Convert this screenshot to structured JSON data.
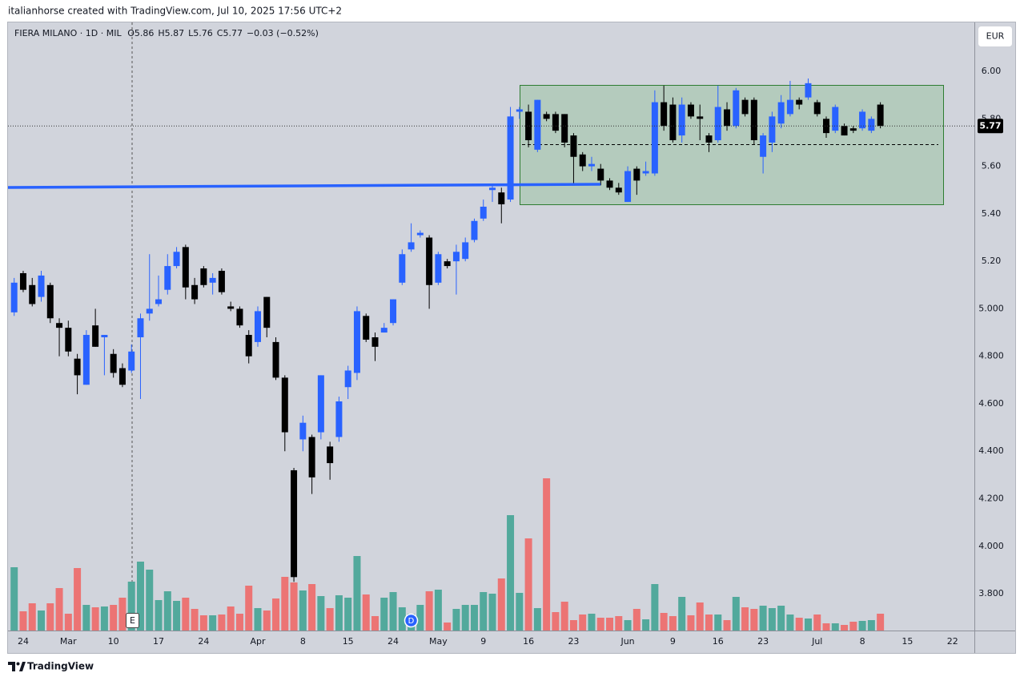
{
  "header": "italianhorse created with TradingView.com, Jul 10, 2025 17:56 UTC+2",
  "brand": "TradingView",
  "chart_data": {
    "type": "candlestick",
    "symbol": "FIERA MILANO · 1D · MIL",
    "legend_keys": [
      "O",
      "H",
      "L",
      "C"
    ],
    "change": "−0.03 (−0.52%)",
    "currency": "EUR",
    "markers": [
      "E",
      "D"
    ],
    "categories": [
      null,
      "24",
      null,
      null,
      null,
      null,
      "Mar",
      null,
      null,
      null,
      null,
      "10",
      null,
      null,
      null,
      null,
      "17",
      null,
      null,
      null,
      null,
      "24",
      null,
      null,
      null,
      null,
      null,
      "Apr",
      null,
      null,
      null,
      null,
      "8",
      null,
      null,
      null,
      null,
      "15",
      null,
      null,
      null,
      null,
      "24",
      null,
      null,
      null,
      null,
      "May",
      null,
      null,
      null,
      null,
      "9",
      null,
      null,
      null,
      null,
      "16",
      null,
      null,
      null,
      null,
      "23",
      null,
      null,
      null,
      null,
      null,
      "Jun",
      null,
      null,
      null,
      null,
      "9",
      null,
      null,
      null,
      null,
      "16",
      null,
      null,
      null,
      null,
      "23",
      null,
      null,
      null,
      null,
      null,
      "Jul",
      null,
      null,
      null,
      null,
      "8",
      null,
      null,
      null,
      null,
      "15",
      null,
      null,
      null,
      null,
      "22"
    ],
    "open": [
      4.985,
      5.15,
      5.1,
      5.05,
      5.1,
      4.94,
      4.92,
      4.79,
      4.68,
      4.93,
      4.88,
      4.81,
      4.75,
      4.74,
      4.88,
      4.98,
      5.02,
      5.08,
      5.18,
      5.26,
      5.1,
      5.17,
      5.11,
      5.16,
      5.01,
      5.0,
      4.89,
      4.86,
      5.05,
      4.86,
      4.71,
      4.32,
      4.45,
      4.46,
      4.48,
      4.42,
      4.46,
      4.67,
      4.73,
      4.97,
      4.88,
      4.9,
      4.94,
      5.11,
      5.25,
      5.31,
      5.3,
      5.11,
      5.2,
      5.2,
      5.21,
      5.29,
      5.38,
      5.5,
      5.49,
      5.46,
      5.83,
      5.83,
      5.67,
      5.82,
      5.82,
      5.82,
      5.73,
      5.65,
      5.6,
      5.59,
      5.54,
      5.51,
      5.45,
      5.59,
      5.57,
      5.57,
      5.87,
      5.86,
      5.73,
      5.86,
      5.81,
      5.73,
      5.71,
      5.84,
      5.77,
      5.88,
      5.88,
      5.64,
      5.7,
      5.78,
      5.82,
      5.88,
      5.89,
      5.87,
      5.8,
      5.75,
      5.77,
      5.76,
      5.76,
      5.75,
      5.86,
      null,
      null,
      null,
      null,
      null,
      null,
      null,
      null
    ],
    "high": [
      5.13,
      5.16,
      5.13,
      5.16,
      5.11,
      4.96,
      4.95,
      4.81,
      4.91,
      5.0,
      4.89,
      4.83,
      4.77,
      4.85,
      4.98,
      5.23,
      5.14,
      5.23,
      5.26,
      5.27,
      5.13,
      5.18,
      5.15,
      5.17,
      5.03,
      5.01,
      4.91,
      5.01,
      5.05,
      4.88,
      4.72,
      4.33,
      4.55,
      4.47,
      4.72,
      4.44,
      4.63,
      4.76,
      5.01,
      4.98,
      4.9,
      4.94,
      5.04,
      5.25,
      5.36,
      5.33,
      5.31,
      5.24,
      5.21,
      5.27,
      5.3,
      5.38,
      5.46,
      5.52,
      5.51,
      5.85,
      5.85,
      5.86,
      5.88,
      5.83,
      5.83,
      5.82,
      5.74,
      5.66,
      5.64,
      5.61,
      5.55,
      5.53,
      5.6,
      5.6,
      5.62,
      5.92,
      5.94,
      5.89,
      5.89,
      5.87,
      5.86,
      5.74,
      5.94,
      5.87,
      5.93,
      5.89,
      5.89,
      5.74,
      5.83,
      5.9,
      5.96,
      5.89,
      5.97,
      5.88,
      5.81,
      5.86,
      5.78,
      5.77,
      5.84,
      5.81,
      5.87,
      null,
      null,
      null,
      null,
      null,
      null,
      null,
      null
    ],
    "low": [
      4.97,
      5.07,
      5.01,
      5.03,
      4.94,
      4.8,
      4.8,
      4.64,
      4.68,
      4.84,
      4.72,
      4.71,
      4.67,
      4.73,
      4.62,
      4.95,
      5.01,
      5.06,
      5.17,
      5.04,
      5.02,
      5.09,
      5.06,
      5.06,
      4.99,
      4.92,
      4.77,
      4.84,
      4.88,
      4.7,
      4.4,
      3.85,
      4.4,
      4.22,
      4.45,
      4.28,
      4.44,
      4.62,
      4.7,
      4.86,
      4.78,
      4.9,
      4.93,
      5.1,
      5.24,
      5.3,
      5.0,
      5.1,
      5.17,
      5.06,
      5.2,
      5.28,
      5.37,
      5.45,
      5.36,
      5.45,
      5.8,
      5.68,
      5.66,
      5.79,
      5.74,
      5.68,
      5.52,
      5.58,
      5.58,
      5.52,
      5.5,
      5.48,
      5.45,
      5.48,
      5.56,
      5.56,
      5.75,
      5.7,
      5.7,
      5.8,
      5.71,
      5.66,
      5.7,
      5.75,
      5.76,
      5.81,
      5.69,
      5.57,
      5.66,
      5.76,
      5.81,
      5.84,
      5.88,
      5.81,
      5.72,
      5.74,
      5.73,
      5.74,
      5.75,
      5.74,
      5.76,
      null,
      null,
      null,
      null,
      null,
      null,
      null,
      null
    ],
    "close": [
      5.11,
      5.08,
      5.02,
      5.14,
      4.96,
      4.92,
      4.82,
      4.72,
      4.89,
      4.84,
      4.89,
      4.73,
      4.68,
      4.82,
      4.96,
      5.0,
      5.04,
      5.18,
      5.24,
      5.09,
      5.04,
      5.1,
      5.13,
      5.07,
      5.0,
      4.93,
      4.8,
      4.99,
      4.92,
      4.71,
      4.48,
      3.87,
      4.52,
      4.29,
      4.72,
      4.35,
      4.61,
      4.74,
      4.99,
      4.87,
      4.84,
      4.92,
      5.04,
      5.23,
      5.28,
      5.32,
      5.1,
      5.23,
      5.18,
      5.24,
      5.28,
      5.37,
      5.43,
      5.51,
      5.44,
      5.81,
      5.84,
      5.71,
      5.88,
      5.8,
      5.75,
      5.7,
      5.64,
      5.6,
      5.61,
      5.54,
      5.51,
      5.49,
      5.58,
      5.54,
      5.58,
      5.87,
      5.77,
      5.71,
      5.86,
      5.81,
      5.8,
      5.7,
      5.85,
      5.77,
      5.92,
      5.82,
      5.71,
      5.73,
      5.81,
      5.87,
      5.88,
      5.86,
      5.95,
      5.82,
      5.74,
      5.85,
      5.73,
      5.75,
      5.83,
      5.8,
      5.77,
      null,
      null,
      null,
      null,
      null,
      null,
      null,
      null
    ],
    "volume": [
      79,
      24,
      34,
      25,
      34,
      53,
      21,
      78,
      32,
      29,
      30,
      32,
      41,
      61,
      86,
      76,
      38,
      49,
      37,
      41,
      27,
      19,
      19,
      20,
      30,
      21,
      56,
      28,
      25,
      40,
      67,
      60,
      50,
      58,
      43,
      28,
      44,
      41,
      93,
      45,
      18,
      41,
      48,
      29,
      21,
      32,
      49,
      51,
      10,
      27,
      32,
      32,
      48,
      46,
      65,
      144,
      47,
      115,
      28,
      190,
      23,
      36,
      13,
      20,
      21,
      16,
      16,
      18,
      13,
      27,
      14,
      58,
      22,
      18,
      42,
      19,
      35,
      20,
      20,
      13,
      42,
      29,
      27,
      31,
      28,
      31,
      20,
      16,
      15,
      20,
      9,
      9,
      7,
      11,
      12,
      13,
      21,
      null,
      null,
      null,
      null,
      null,
      null,
      null,
      null
    ],
    "volume_lim": [
      0,
      200
    ],
    "ylim": [
      3.645,
      6.206
    ],
    "yticks": [
      {
        "value": 6,
        "label": "6.00"
      },
      {
        "value": 5.8,
        "label": "5.80"
      },
      {
        "value": 5.6,
        "label": "5.60"
      },
      {
        "value": 5.4,
        "label": "5.40"
      },
      {
        "value": 5.2,
        "label": "5.20"
      },
      {
        "value": 5,
        "label": "5.000"
      },
      {
        "value": 4.8,
        "label": "4.800"
      },
      {
        "value": 4.6,
        "label": "4.600"
      },
      {
        "value": 4.4,
        "label": "4.400"
      },
      {
        "value": 4.2,
        "label": "4.200"
      },
      {
        "value": 4,
        "label": "4.000"
      },
      {
        "value": 3.8,
        "label": "3.800"
      }
    ],
    "grid": false,
    "up_color": "#2962ff",
    "down_color": "#000000",
    "volume_up_color": "#52a99c",
    "volume_down_color": "#ec7474"
  }
}
